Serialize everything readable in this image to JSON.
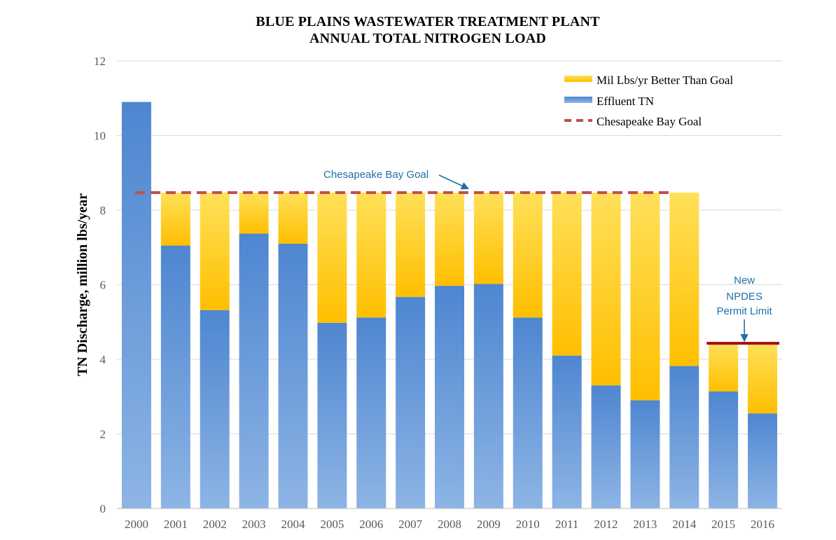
{
  "title_line1": "BLUE PLAINS WASTEWATER TREATMENT PLANT",
  "title_line2": "ANNUAL TOTAL NITROGEN LOAD",
  "chart_data": {
    "type": "bar",
    "stacked": true,
    "categories": [
      "2000",
      "2001",
      "2002",
      "2003",
      "2004",
      "2005",
      "2006",
      "2007",
      "2008",
      "2009",
      "2010",
      "2011",
      "2012",
      "2013",
      "2014",
      "2015",
      "2016"
    ],
    "series": [
      {
        "name": "Effluent TN",
        "color": "#5b8fd4",
        "values": [
          10.9,
          7.05,
          5.32,
          7.37,
          7.1,
          4.98,
          5.12,
          5.67,
          5.97,
          6.02,
          5.12,
          4.1,
          3.3,
          2.9,
          3.82,
          3.14,
          2.55
        ]
      },
      {
        "name": "Mil Lbs/yr Better Than Goal",
        "color": "#ffc000",
        "values": [
          0,
          1.42,
          3.15,
          1.1,
          1.37,
          3.49,
          3.35,
          2.8,
          2.5,
          2.45,
          3.35,
          4.37,
          5.17,
          5.57,
          4.65,
          1.29,
          1.88
        ]
      }
    ],
    "reference_lines": [
      {
        "name": "Chesapeake Bay Goal",
        "value": 8.47,
        "from": "2000",
        "to": "2014",
        "style": "dashed",
        "color": "#c0504d"
      },
      {
        "name": "New NPDES Permit Limit",
        "value": 4.43,
        "from": "2015",
        "to": "2016",
        "style": "solid",
        "color": "#a50f15"
      }
    ],
    "annotations": [
      {
        "text": "Chesapeake Bay Goal",
        "color": "#1f6fa8"
      },
      {
        "lines": [
          "New",
          "NPDES",
          "Permit Limit"
        ],
        "color": "#1f6fa8"
      }
    ],
    "xlabel": "",
    "ylabel": "TN Discharge, million lbs/year",
    "ylim": [
      0,
      12
    ],
    "yticks": [
      "0",
      "2",
      "4",
      "6",
      "8",
      "10",
      "12"
    ],
    "grid": true,
    "legend": {
      "position": "top-right",
      "entries": [
        "Mil Lbs/yr Better Than Goal",
        "Effluent TN",
        "Chesapeake Bay Goal"
      ]
    }
  }
}
